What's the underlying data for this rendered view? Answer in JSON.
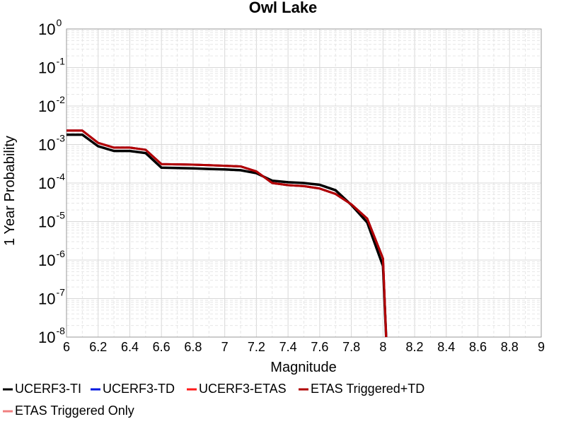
{
  "chart_data": {
    "type": "line",
    "title": "Owl Lake",
    "xlabel": "Magnitude",
    "ylabel": "1 Year Probability",
    "xlim": [
      6,
      9
    ],
    "ylim": [
      1e-08,
      1
    ],
    "yscale": "log",
    "grid": true,
    "legend_position": "bottom",
    "x_ticks": [
      "6",
      "6.2",
      "6.4",
      "6.6",
      "6.8",
      "7",
      "7.2",
      "7.4",
      "7.6",
      "7.8",
      "8",
      "8.2",
      "8.4",
      "8.6",
      "8.8",
      "9"
    ],
    "y_ticks": [
      {
        "base": "10",
        "exp": "0"
      },
      {
        "base": "10",
        "exp": "-1"
      },
      {
        "base": "10",
        "exp": "-2"
      },
      {
        "base": "10",
        "exp": "-3"
      },
      {
        "base": "10",
        "exp": "-4"
      },
      {
        "base": "10",
        "exp": "-5"
      },
      {
        "base": "10",
        "exp": "-6"
      },
      {
        "base": "10",
        "exp": "-7"
      },
      {
        "base": "10",
        "exp": "-8"
      }
    ],
    "series": [
      {
        "name": "UCERF3-TI",
        "color": "#000000",
        "x": [
          6.0,
          6.1,
          6.2,
          6.3,
          6.4,
          6.5,
          6.6,
          6.7,
          6.8,
          6.9,
          7.0,
          7.1,
          7.2,
          7.3,
          7.4,
          7.5,
          7.6,
          7.7,
          7.8,
          7.9,
          8.0,
          8.02
        ],
        "y": [
          0.0018,
          0.0018,
          0.0009,
          0.00068,
          0.00068,
          0.0006,
          0.00025,
          0.000245,
          0.00024,
          0.000232,
          0.000225,
          0.000215,
          0.00018,
          0.000115,
          0.000105,
          0.0001,
          9e-05,
          6.5e-05,
          2.7e-05,
          9.5e-06,
          7e-07,
          1e-08
        ]
      },
      {
        "name": "UCERF3-TD",
        "color": "#0018e0",
        "x": [
          6.0,
          6.1,
          6.2,
          6.3,
          6.4,
          6.5,
          6.6,
          6.7,
          6.8,
          6.9,
          7.0,
          7.1,
          7.2,
          7.3,
          7.4,
          7.5,
          7.6,
          7.7,
          7.8,
          7.9,
          8.0,
          8.02
        ],
        "y": [
          0.0023,
          0.0023,
          0.0011,
          0.00083,
          0.00083,
          0.00073,
          0.00031,
          0.000305,
          0.0003,
          0.00029,
          0.00028,
          0.00027,
          0.0002,
          0.0001,
          8.8e-05,
          8.3e-05,
          7.2e-05,
          5.2e-05,
          2.8e-05,
          1.2e-05,
          1.1e-06,
          1e-08
        ]
      },
      {
        "name": "UCERF3-ETAS",
        "color": "#ff1a1a",
        "x": [
          6.0,
          6.1,
          6.2,
          6.3,
          6.4,
          6.5,
          6.6,
          6.7,
          6.8,
          6.9,
          7.0,
          7.1,
          7.2,
          7.3,
          7.4,
          7.5,
          7.6,
          7.7,
          7.8,
          7.9,
          8.0,
          8.02
        ],
        "y": [
          0.0023,
          0.0023,
          0.0011,
          0.00083,
          0.00083,
          0.00073,
          0.00031,
          0.000305,
          0.0003,
          0.00029,
          0.00028,
          0.00027,
          0.0002,
          0.0001,
          8.8e-05,
          8.3e-05,
          7.2e-05,
          5.2e-05,
          2.8e-05,
          1.2e-05,
          1.1e-06,
          1e-08
        ]
      },
      {
        "name": "ETAS Triggered+TD",
        "color": "#b00000",
        "x": [
          6.0,
          6.1,
          6.2,
          6.3,
          6.4,
          6.5,
          6.6,
          6.7,
          6.8,
          6.9,
          7.0,
          7.1,
          7.2,
          7.3,
          7.4,
          7.5,
          7.6,
          7.7,
          7.8,
          7.9,
          8.0,
          8.02
        ],
        "y": [
          0.0023,
          0.0023,
          0.0011,
          0.00083,
          0.00083,
          0.00073,
          0.00031,
          0.000305,
          0.0003,
          0.00029,
          0.00028,
          0.00027,
          0.0002,
          0.0001,
          8.8e-05,
          8.3e-05,
          7.2e-05,
          5.2e-05,
          2.8e-05,
          1.2e-05,
          1.1e-06,
          1e-08
        ]
      },
      {
        "name": "ETAS Triggered Only",
        "color": "#f08080",
        "x": [],
        "y": []
      }
    ]
  }
}
